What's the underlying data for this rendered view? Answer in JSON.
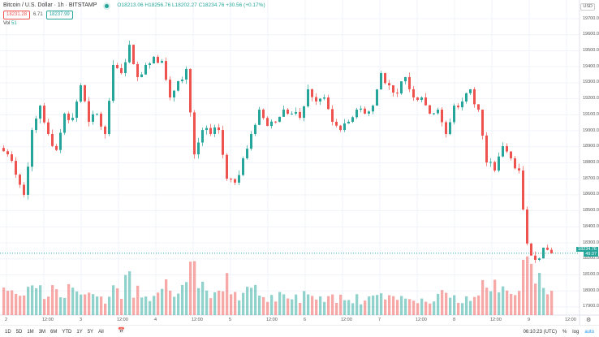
{
  "header": {
    "symbol": "Bitcoin / U.S. Dollar · 1h · BITSTAMP",
    "open": "O18213.06",
    "high": "H18256.76",
    "low": "L18202.27",
    "close": "C18234.76",
    "change": "+30.56 (+0.17%)",
    "sell_price": "18231.28",
    "spread": "6.71",
    "buy_price": "18237.99",
    "vol_label": "Vol",
    "vol_value": "51"
  },
  "price_axis": {
    "currency": "USD",
    "labels": [
      "19700.00",
      "19600.00",
      "19500.00",
      "19400.00",
      "19300.00",
      "19200.00",
      "19100.00",
      "19000.00",
      "18900.00",
      "18800.00",
      "18700.00",
      "18600.00",
      "18500.00",
      "18400.00",
      "18300.00",
      "18200.00",
      "18100.00",
      "18000.00",
      "17900.00"
    ],
    "last_price": "18234.76",
    "countdown": "49:37"
  },
  "time_axis": {
    "labels": [
      "2",
      "12:00",
      "3",
      "12:00",
      "4",
      "12:00",
      "5",
      "12:00",
      "6",
      "12:00",
      "7",
      "12:00",
      "8",
      "12:00",
      "9",
      "12:00"
    ]
  },
  "toolbar": {
    "ranges": [
      "1D",
      "5D",
      "1M",
      "3M",
      "6M",
      "YTD",
      "1Y",
      "5Y",
      "All"
    ],
    "clock": "06:10:23 (UTC)",
    "percent": "%",
    "log": "log",
    "auto": "auto"
  },
  "colors": {
    "up": "#26a69a",
    "down": "#ef5350"
  },
  "chart_data": {
    "type": "candlestick",
    "closes": [
      18853,
      18726,
      18600,
      19005,
      19157,
      18980,
      18880,
      19107,
      19081,
      19284,
      19056,
      19107,
      18980,
      19411,
      19360,
      19537,
      19335,
      19411,
      19462,
      19436,
      19208,
      19310,
      19386,
      18853,
      19005,
      18980,
      19005,
      18701,
      18676,
      18828,
      18980,
      19132,
      19030,
      19056,
      19132,
      19107,
      19081,
      19259,
      19183,
      19208,
      19056,
      19005,
      19056,
      19132,
      19107,
      19157,
      19360,
      19284,
      19233,
      19335,
      19208,
      19208,
      19107,
      19132,
      18980,
      19157,
      19183,
      19259,
      19132,
      18802,
      18752,
      18904,
      18828,
      18752,
      18296,
      18194,
      18270,
      18235
    ],
    "volumes": [
      40,
      35,
      30,
      45,
      38,
      25,
      30,
      28,
      35,
      30,
      22,
      25,
      20,
      30,
      28,
      45,
      30,
      25,
      22,
      28,
      35,
      30,
      40,
      60,
      35,
      28,
      30,
      40,
      32,
      25,
      28,
      30,
      22,
      20,
      25,
      18,
      20,
      28,
      22,
      18,
      25,
      20,
      15,
      20,
      18,
      22,
      25,
      20,
      18,
      22,
      25,
      20,
      18,
      22,
      28,
      20,
      18,
      20,
      25,
      45,
      35,
      30,
      28,
      35,
      60,
      55,
      40,
      30
    ]
  }
}
